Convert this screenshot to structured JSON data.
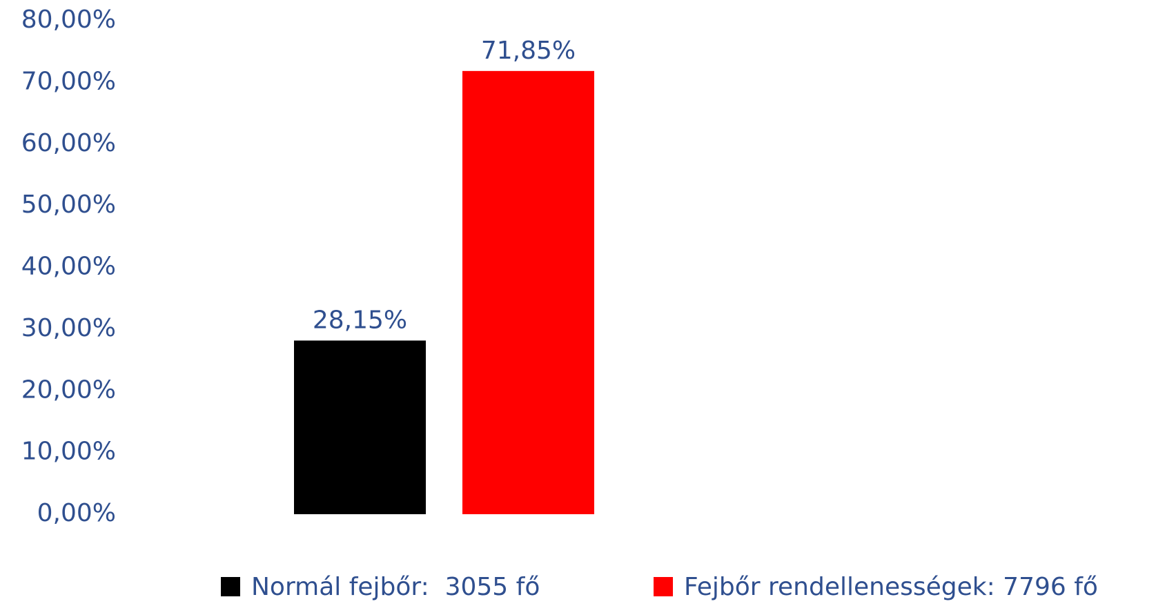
{
  "chart_data": {
    "type": "bar",
    "categories": [
      null
    ],
    "series": [
      {
        "name": "Normál fejbőr:  3055 fő",
        "color": "#000000",
        "values": [
          28.15
        ],
        "value_labels": [
          "28,15%"
        ]
      },
      {
        "name": "Fejbőr rendellenességek: 7796 fő",
        "color": "#ff0000",
        "values": [
          71.85
        ],
        "value_labels": [
          "71,85%"
        ]
      }
    ],
    "ylim": [
      0,
      80
    ],
    "yticks": [
      {
        "value": 0,
        "label": "0,00%"
      },
      {
        "value": 10,
        "label": "10,00%"
      },
      {
        "value": 20,
        "label": "20,00%"
      },
      {
        "value": 30,
        "label": "30,00%"
      },
      {
        "value": 40,
        "label": "40,00%"
      },
      {
        "value": 50,
        "label": "50,00%"
      },
      {
        "value": 60,
        "label": "60,00%"
      },
      {
        "value": 70,
        "label": "70,00%"
      },
      {
        "value": 80,
        "label": "80,00%"
      }
    ],
    "grid": false,
    "legend": "bottom"
  }
}
